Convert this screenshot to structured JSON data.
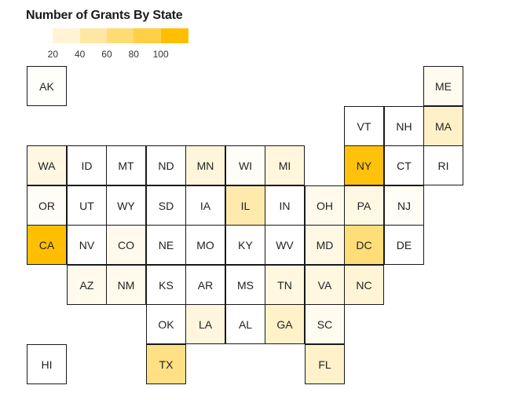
{
  "title": "Number of Grants By State",
  "legend": {
    "colors": [
      "#ffffff",
      "#fff4d4",
      "#ffe7a3",
      "#ffdb74",
      "#ffcf45",
      "#ffbf00"
    ],
    "labels": [
      "20",
      "40",
      "60",
      "80",
      "100"
    ]
  },
  "states": [
    {
      "abbr": "AK",
      "row": 0,
      "col": 0,
      "color": "#fefefb"
    },
    {
      "abbr": "ME",
      "row": 0,
      "col": 10,
      "color": "#fffbef"
    },
    {
      "abbr": "VT",
      "row": 1,
      "col": 8,
      "color": "#ffffff"
    },
    {
      "abbr": "NH",
      "row": 1,
      "col": 9,
      "color": "#ffffff"
    },
    {
      "abbr": "MA",
      "row": 1,
      "col": 10,
      "color": "#fff1c7"
    },
    {
      "abbr": "WA",
      "row": 2,
      "col": 0,
      "color": "#fff7e1"
    },
    {
      "abbr": "ID",
      "row": 2,
      "col": 1,
      "color": "#ffffff"
    },
    {
      "abbr": "MT",
      "row": 2,
      "col": 2,
      "color": "#ffffff"
    },
    {
      "abbr": "ND",
      "row": 2,
      "col": 3,
      "color": "#ffffff"
    },
    {
      "abbr": "MN",
      "row": 2,
      "col": 4,
      "color": "#fff5da"
    },
    {
      "abbr": "WI",
      "row": 2,
      "col": 5,
      "color": "#fffdf7"
    },
    {
      "abbr": "MI",
      "row": 2,
      "col": 6,
      "color": "#fff6dc"
    },
    {
      "abbr": "NY",
      "row": 2,
      "col": 8,
      "color": "#ffc20c"
    },
    {
      "abbr": "CT",
      "row": 2,
      "col": 9,
      "color": "#ffffff"
    },
    {
      "abbr": "RI",
      "row": 2,
      "col": 10,
      "color": "#ffffff"
    },
    {
      "abbr": "OR",
      "row": 3,
      "col": 0,
      "color": "#fffdf6"
    },
    {
      "abbr": "UT",
      "row": 3,
      "col": 1,
      "color": "#ffffff"
    },
    {
      "abbr": "WY",
      "row": 3,
      "col": 2,
      "color": "#ffffff"
    },
    {
      "abbr": "SD",
      "row": 3,
      "col": 3,
      "color": "#ffffff"
    },
    {
      "abbr": "IA",
      "row": 3,
      "col": 4,
      "color": "#ffffff"
    },
    {
      "abbr": "IL",
      "row": 3,
      "col": 5,
      "color": "#ffeaae"
    },
    {
      "abbr": "IN",
      "row": 3,
      "col": 6,
      "color": "#ffffff"
    },
    {
      "abbr": "OH",
      "row": 3,
      "col": 7,
      "color": "#fffaec"
    },
    {
      "abbr": "PA",
      "row": 3,
      "col": 8,
      "color": "#fff8e3"
    },
    {
      "abbr": "NJ",
      "row": 3,
      "col": 9,
      "color": "#fffdf6"
    },
    {
      "abbr": "CA",
      "row": 4,
      "col": 0,
      "color": "#ffbf00"
    },
    {
      "abbr": "NV",
      "row": 4,
      "col": 1,
      "color": "#ffffff"
    },
    {
      "abbr": "CO",
      "row": 4,
      "col": 2,
      "color": "#fffaec"
    },
    {
      "abbr": "NE",
      "row": 4,
      "col": 3,
      "color": "#ffffff"
    },
    {
      "abbr": "MO",
      "row": 4,
      "col": 4,
      "color": "#ffffff"
    },
    {
      "abbr": "KY",
      "row": 4,
      "col": 5,
      "color": "#ffffff"
    },
    {
      "abbr": "WV",
      "row": 4,
      "col": 6,
      "color": "#ffffff"
    },
    {
      "abbr": "MD",
      "row": 4,
      "col": 7,
      "color": "#fff8e5"
    },
    {
      "abbr": "DC",
      "row": 4,
      "col": 8,
      "color": "#ffdd79"
    },
    {
      "abbr": "DE",
      "row": 4,
      "col": 9,
      "color": "#ffffff"
    },
    {
      "abbr": "AZ",
      "row": 5,
      "col": 1,
      "color": "#fffaeb"
    },
    {
      "abbr": "NM",
      "row": 5,
      "col": 2,
      "color": "#fffaeb"
    },
    {
      "abbr": "KS",
      "row": 5,
      "col": 3,
      "color": "#ffffff"
    },
    {
      "abbr": "AR",
      "row": 5,
      "col": 4,
      "color": "#ffffff"
    },
    {
      "abbr": "MS",
      "row": 5,
      "col": 5,
      "color": "#ffffff"
    },
    {
      "abbr": "TN",
      "row": 5,
      "col": 6,
      "color": "#fff7df"
    },
    {
      "abbr": "VA",
      "row": 5,
      "col": 7,
      "color": "#fff7df"
    },
    {
      "abbr": "NC",
      "row": 5,
      "col": 8,
      "color": "#fff4d6"
    },
    {
      "abbr": "OK",
      "row": 6,
      "col": 3,
      "color": "#ffffff"
    },
    {
      "abbr": "LA",
      "row": 6,
      "col": 4,
      "color": "#fff6dd"
    },
    {
      "abbr": "AL",
      "row": 6,
      "col": 5,
      "color": "#ffffff"
    },
    {
      "abbr": "GA",
      "row": 6,
      "col": 6,
      "color": "#fff1c8"
    },
    {
      "abbr": "SC",
      "row": 6,
      "col": 7,
      "color": "#fffbef"
    },
    {
      "abbr": "HI",
      "row": 7,
      "col": 0,
      "color": "#ffffff"
    },
    {
      "abbr": "TX",
      "row": 7,
      "col": 3,
      "color": "#ffe085"
    },
    {
      "abbr": "FL",
      "row": 7,
      "col": 7,
      "color": "#fff1c9"
    }
  ]
}
